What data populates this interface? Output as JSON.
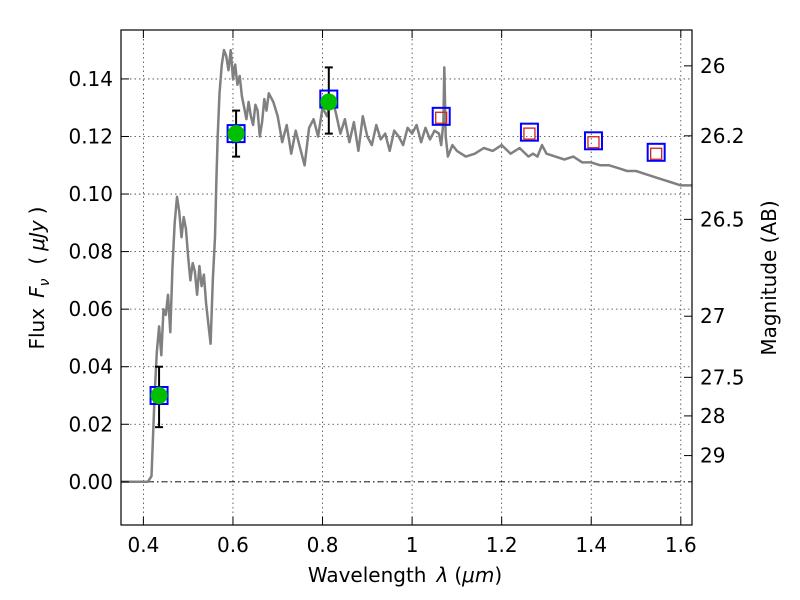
{
  "chart_data": {
    "type": "line",
    "xlabel": "Wavelength",
    "xlabel_symbol": "λ",
    "xlabel_unit_open": "(",
    "xlabel_unit": "μm",
    "xlabel_unit_close": ")",
    "ylabel": "Flux",
    "ylabel_symbol": "F",
    "ylabel_subscript": "ν",
    "ylabel_unit_open": "(",
    "ylabel_unit": "μJy",
    "ylabel_unit_close": ")",
    "y2label": "Magnitude (AB)",
    "xlim": [
      0.35,
      1.625
    ],
    "ylim": [
      -0.015,
      0.157
    ],
    "grid": true,
    "zero_line": true,
    "x_ticks": [
      {
        "value": 0.4,
        "label": "0.4"
      },
      {
        "value": 0.6,
        "label": "0.6"
      },
      {
        "value": 0.8,
        "label": "0.8"
      },
      {
        "value": 1.0,
        "label": "1"
      },
      {
        "value": 1.2,
        "label": "1.2"
      },
      {
        "value": 1.4,
        "label": "1.4"
      },
      {
        "value": 1.6,
        "label": "1.6"
      }
    ],
    "y_ticks": [
      {
        "value": 0.0,
        "label": "0.00"
      },
      {
        "value": 0.02,
        "label": "0.02"
      },
      {
        "value": 0.04,
        "label": "0.04"
      },
      {
        "value": 0.06,
        "label": "0.06"
      },
      {
        "value": 0.08,
        "label": "0.08"
      },
      {
        "value": 0.1,
        "label": "0.10"
      },
      {
        "value": 0.12,
        "label": "0.12"
      },
      {
        "value": 0.14,
        "label": "0.14"
      }
    ],
    "y2_ticks": [
      {
        "mag": 26.0,
        "label": "26"
      },
      {
        "mag": 26.2,
        "label": "26.2"
      },
      {
        "mag": 26.5,
        "label": "26.5"
      },
      {
        "mag": 27.0,
        "label": "27"
      },
      {
        "mag": 27.5,
        "label": "27.5"
      },
      {
        "mag": 28.0,
        "label": "28"
      },
      {
        "mag": 29.0,
        "label": "29"
      }
    ],
    "spectrum": {
      "color": "#808080",
      "x": [
        0.35,
        0.41,
        0.418,
        0.425,
        0.43,
        0.435,
        0.44,
        0.445,
        0.45,
        0.455,
        0.46,
        0.465,
        0.47,
        0.475,
        0.48,
        0.485,
        0.49,
        0.495,
        0.5,
        0.505,
        0.51,
        0.515,
        0.52,
        0.525,
        0.53,
        0.535,
        0.54,
        0.545,
        0.55,
        0.555,
        0.56,
        0.563,
        0.566,
        0.57,
        0.575,
        0.58,
        0.585,
        0.59,
        0.595,
        0.6,
        0.605,
        0.61,
        0.615,
        0.62,
        0.625,
        0.63,
        0.635,
        0.64,
        0.645,
        0.65,
        0.655,
        0.66,
        0.665,
        0.67,
        0.675,
        0.68,
        0.69,
        0.7,
        0.71,
        0.72,
        0.73,
        0.74,
        0.75,
        0.76,
        0.77,
        0.78,
        0.79,
        0.8,
        0.81,
        0.82,
        0.83,
        0.84,
        0.85,
        0.86,
        0.87,
        0.88,
        0.89,
        0.9,
        0.91,
        0.92,
        0.93,
        0.94,
        0.95,
        0.96,
        0.97,
        0.98,
        0.99,
        1.0,
        1.01,
        1.02,
        1.03,
        1.04,
        1.05,
        1.06,
        1.065,
        1.07,
        1.072,
        1.075,
        1.08,
        1.09,
        1.1,
        1.12,
        1.14,
        1.16,
        1.18,
        1.2,
        1.22,
        1.24,
        1.26,
        1.27,
        1.28,
        1.29,
        1.3,
        1.32,
        1.34,
        1.36,
        1.38,
        1.4,
        1.42,
        1.44,
        1.46,
        1.48,
        1.5,
        1.52,
        1.54,
        1.56,
        1.58,
        1.6,
        1.625
      ],
      "y": [
        0.0,
        0.0,
        0.002,
        0.03,
        0.045,
        0.054,
        0.044,
        0.06,
        0.058,
        0.065,
        0.052,
        0.075,
        0.09,
        0.099,
        0.094,
        0.085,
        0.092,
        0.088,
        0.078,
        0.07,
        0.076,
        0.073,
        0.065,
        0.075,
        0.068,
        0.072,
        0.062,
        0.055,
        0.048,
        0.07,
        0.085,
        0.105,
        0.12,
        0.135,
        0.145,
        0.15,
        0.148,
        0.143,
        0.15,
        0.14,
        0.145,
        0.138,
        0.141,
        0.134,
        0.13,
        0.126,
        0.132,
        0.127,
        0.124,
        0.131,
        0.129,
        0.12,
        0.125,
        0.133,
        0.129,
        0.135,
        0.132,
        0.127,
        0.118,
        0.124,
        0.114,
        0.122,
        0.116,
        0.11,
        0.123,
        0.126,
        0.12,
        0.13,
        0.127,
        0.134,
        0.128,
        0.121,
        0.126,
        0.118,
        0.125,
        0.115,
        0.127,
        0.12,
        0.117,
        0.124,
        0.119,
        0.121,
        0.115,
        0.122,
        0.12,
        0.117,
        0.123,
        0.121,
        0.124,
        0.118,
        0.123,
        0.119,
        0.122,
        0.121,
        0.117,
        0.125,
        0.144,
        0.12,
        0.113,
        0.117,
        0.115,
        0.113,
        0.114,
        0.116,
        0.115,
        0.117,
        0.114,
        0.116,
        0.113,
        0.114,
        0.113,
        0.117,
        0.114,
        0.113,
        0.112,
        0.113,
        0.111,
        0.111,
        0.11,
        0.11,
        0.109,
        0.108,
        0.108,
        0.107,
        0.106,
        0.105,
        0.104,
        0.103,
        0.103
      ]
    },
    "photometry": [
      {
        "x": 0.435,
        "y": 0.03,
        "err_low": 0.019,
        "err_high": 0.04,
        "detected": true
      },
      {
        "x": 0.607,
        "y": 0.121,
        "err_low": 0.113,
        "err_high": 0.129,
        "detected": true
      },
      {
        "x": 0.814,
        "y": 0.132,
        "err_low": 0.121,
        "err_high": 0.144,
        "detected": true
      }
    ],
    "model_points": [
      {
        "x": 0.435,
        "y": 0.03
      },
      {
        "x": 0.607,
        "y": 0.121
      },
      {
        "x": 0.814,
        "y": 0.133
      },
      {
        "x": 1.065,
        "y": 0.127
      },
      {
        "x": 1.262,
        "y": 0.1215
      },
      {
        "x": 1.405,
        "y": 0.1185
      },
      {
        "x": 1.545,
        "y": 0.1145
      }
    ],
    "upper_limits": [
      {
        "x": 1.065,
        "y": 0.1265
      },
      {
        "x": 1.262,
        "y": 0.121
      },
      {
        "x": 1.405,
        "y": 0.118
      },
      {
        "x": 1.545,
        "y": 0.114
      }
    ],
    "colors": {
      "detected": "#00bf00",
      "model_box": "#0000ff",
      "limit_box": "#cc2222",
      "errorbar": "#000000"
    }
  }
}
